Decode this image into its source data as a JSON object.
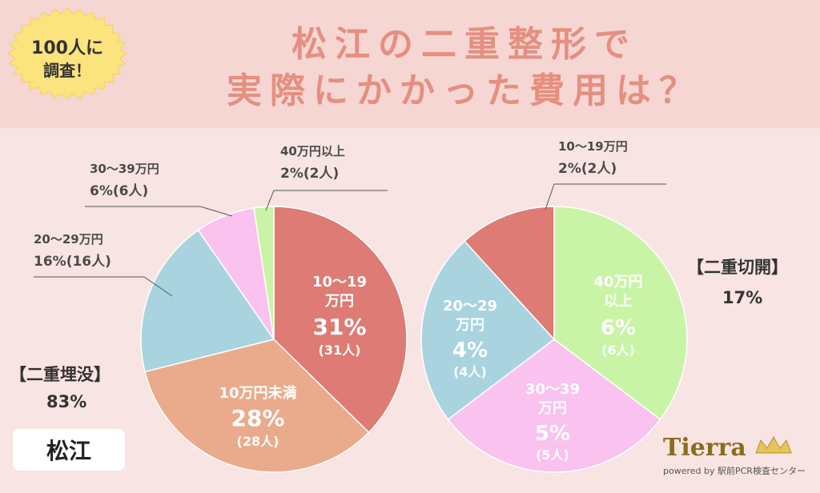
{
  "header": {
    "title_line1": "松江の二重整形で",
    "title_line2": "実際にかかった費用は？",
    "badge_line1": "100人に",
    "badge_line2": "調査！"
  },
  "left_pie": {
    "group_label": "【二重埋没】",
    "group_pct": "83%",
    "labels": {
      "s1_cat1": "10〜19",
      "s1_cat2": "万円",
      "s1_pct": "31%",
      "s1_cnt": "(31人)",
      "s2_cat": "10万円未満",
      "s2_pct": "28%",
      "s2_cnt": "(28人)",
      "s3_cat": "20〜29万円",
      "s3_pct": "16%(16人)",
      "s4_cat": "30〜39万円",
      "s4_pct": "6%(6人)",
      "s5_cat": "40万円以上",
      "s5_pct": "2%(2人)"
    }
  },
  "right_pie": {
    "group_label": "【二重切開】",
    "group_pct": "17%",
    "labels": {
      "s1_cat1": "40万円",
      "s1_cat2": "以上",
      "s1_pct": "6%",
      "s1_cnt": "(6人)",
      "s2_cat1": "30〜39",
      "s2_cat2": "万円",
      "s2_pct": "5%",
      "s2_cnt": "(5人)",
      "s3_cat1": "20〜29",
      "s3_cat2": "万円",
      "s3_pct": "4%",
      "s3_cnt": "(4人)",
      "s4_cat": "10〜19万円",
      "s4_pct": "2%(2人)"
    }
  },
  "city": "松江",
  "logo": {
    "name": "Tierra",
    "tagline": "powered by 駅前PCR検査センター"
  },
  "colors": {
    "red": "#dd7b74",
    "orange": "#eaab8c",
    "blue": "#a9d4df",
    "pink": "#f9c2ef",
    "green": "#c9f4a6",
    "title": "#e58f80",
    "badge": "#fbe37d"
  },
  "chart_data": [
    {
      "type": "pie",
      "title": "【二重埋没】",
      "total_share": 83,
      "categories": [
        "10〜19万円",
        "10万円未満",
        "20〜29万円",
        "30〜39万円",
        "40万円以上"
      ],
      "values": [
        31,
        28,
        16,
        6,
        2
      ],
      "colors": [
        "#dd7b74",
        "#eaab8c",
        "#a9d4df",
        "#f9c2ef",
        "#c9f4a6"
      ]
    },
    {
      "type": "pie",
      "title": "【二重切開】",
      "total_share": 17,
      "categories": [
        "40万円以上",
        "30〜39万円",
        "20〜29万円",
        "10〜19万円"
      ],
      "values": [
        6,
        5,
        4,
        2
      ],
      "colors": [
        "#c9f4a6",
        "#f9c2ef",
        "#a9d4df",
        "#dd7b74"
      ]
    }
  ]
}
